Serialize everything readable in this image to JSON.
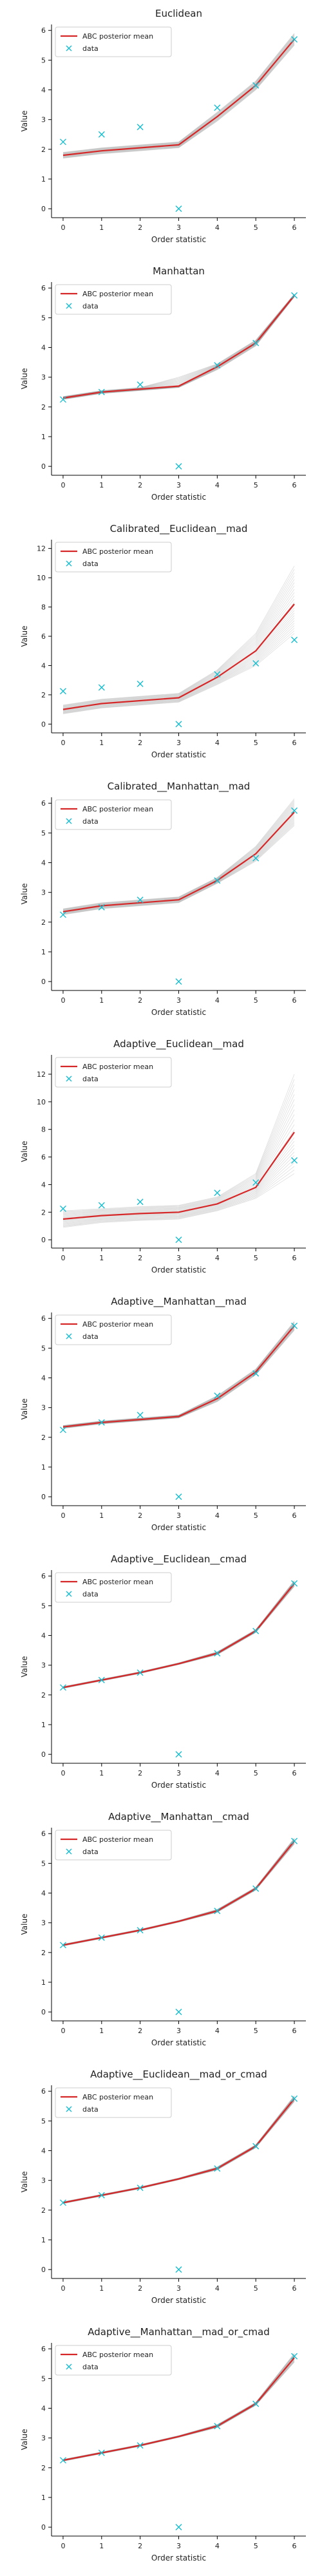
{
  "legend": {
    "mean_label": "ABC posterior mean",
    "data_label": "data"
  },
  "colors": {
    "mean": "#d62728",
    "data": "#17becf",
    "samples": "#888888",
    "axis": "#000000"
  },
  "chart_data": [
    {
      "type": "line",
      "title": "Euclidean",
      "xlabel": "Order statistic",
      "ylabel": "Value",
      "x": [
        0,
        1,
        2,
        3,
        4,
        5,
        6
      ],
      "xlim": [
        -0.3,
        6.3
      ],
      "ylim": [
        -0.3,
        6.2
      ],
      "yticks": [
        0,
        1,
        2,
        3,
        4,
        5,
        6
      ],
      "legend_position": "top-left",
      "mean": [
        1.8,
        1.95,
        2.05,
        2.15,
        3.1,
        4.15,
        5.7
      ],
      "data": [
        2.25,
        2.5,
        2.75,
        0.0,
        3.4,
        4.15,
        5.7
      ],
      "spread_low": [
        0.1,
        0.1,
        0.1,
        0.1,
        0.15,
        0.15,
        0.2
      ],
      "spread_high": [
        0.1,
        0.1,
        0.1,
        0.1,
        0.15,
        0.15,
        0.2
      ]
    },
    {
      "type": "line",
      "title": "Manhattan",
      "xlabel": "Order statistic",
      "ylabel": "Value",
      "x": [
        0,
        1,
        2,
        3,
        4,
        5,
        6
      ],
      "xlim": [
        -0.3,
        6.3
      ],
      "ylim": [
        -0.3,
        6.2
      ],
      "yticks": [
        0,
        1,
        2,
        3,
        4,
        5,
        6
      ],
      "legend_position": "top-left",
      "mean": [
        2.3,
        2.5,
        2.6,
        2.7,
        3.35,
        4.15,
        5.75
      ],
      "data": [
        2.25,
        2.5,
        2.75,
        0.0,
        3.4,
        4.15,
        5.75
      ],
      "spread_low": [
        0.05,
        0.05,
        0.05,
        0.05,
        0.1,
        0.1,
        0.05
      ],
      "spread_high": [
        0.05,
        0.05,
        0.05,
        0.3,
        0.1,
        0.1,
        0.05
      ]
    },
    {
      "type": "line",
      "title": "Calibrated__Euclidean__mad",
      "xlabel": "Order statistic",
      "ylabel": "Value",
      "x": [
        0,
        1,
        2,
        3,
        4,
        5,
        6
      ],
      "xlim": [
        -0.3,
        6.3
      ],
      "ylim": [
        -0.6,
        12.6
      ],
      "yticks": [
        0,
        2,
        4,
        6,
        8,
        10,
        12
      ],
      "legend_position": "top-left",
      "mean": [
        1.0,
        1.4,
        1.6,
        1.8,
        3.2,
        5.0,
        8.2
      ],
      "data": [
        2.25,
        2.5,
        2.75,
        0.0,
        3.4,
        4.15,
        5.75
      ],
      "spread_low": [
        0.3,
        0.3,
        0.3,
        0.3,
        0.5,
        1.0,
        2.0
      ],
      "spread_high": [
        0.3,
        0.3,
        0.3,
        0.3,
        0.5,
        1.2,
        2.6
      ]
    },
    {
      "type": "line",
      "title": "Calibrated__Manhattan__mad",
      "xlabel": "Order statistic",
      "ylabel": "Value",
      "x": [
        0,
        1,
        2,
        3,
        4,
        5,
        6
      ],
      "xlim": [
        -0.3,
        6.3
      ],
      "ylim": [
        -0.3,
        6.2
      ],
      "yticks": [
        0,
        1,
        2,
        3,
        4,
        5,
        6
      ],
      "legend_position": "top-left",
      "mean": [
        2.35,
        2.55,
        2.65,
        2.75,
        3.4,
        4.3,
        5.7
      ],
      "data": [
        2.25,
        2.5,
        2.75,
        0.0,
        3.4,
        4.15,
        5.75
      ],
      "spread_low": [
        0.1,
        0.1,
        0.1,
        0.1,
        0.1,
        0.25,
        0.45
      ],
      "spread_high": [
        0.1,
        0.1,
        0.1,
        0.1,
        0.1,
        0.25,
        0.45
      ]
    },
    {
      "type": "line",
      "title": "Adaptive__Euclidean__mad",
      "xlabel": "Order statistic",
      "ylabel": "Value",
      "x": [
        0,
        1,
        2,
        3,
        4,
        5,
        6
      ],
      "xlim": [
        -0.3,
        6.3
      ],
      "ylim": [
        -0.6,
        13.4
      ],
      "yticks": [
        0,
        2,
        4,
        6,
        8,
        10,
        12
      ],
      "legend_position": "top-left",
      "mean": [
        1.5,
        1.75,
        1.9,
        2.0,
        2.6,
        3.8,
        7.8
      ],
      "data": [
        2.25,
        2.5,
        2.75,
        0.0,
        3.4,
        4.15,
        5.75
      ],
      "spread_low": [
        0.6,
        0.5,
        0.5,
        0.5,
        0.5,
        0.8,
        3.0
      ],
      "spread_high": [
        0.6,
        0.5,
        0.5,
        0.5,
        0.5,
        1.0,
        4.2
      ]
    },
    {
      "type": "line",
      "title": "Adaptive__Manhattan__mad",
      "xlabel": "Order statistic",
      "ylabel": "Value",
      "x": [
        0,
        1,
        2,
        3,
        4,
        5,
        6
      ],
      "xlim": [
        -0.3,
        6.3
      ],
      "ylim": [
        -0.3,
        6.2
      ],
      "yticks": [
        0,
        1,
        2,
        3,
        4,
        5,
        6
      ],
      "legend_position": "top-left",
      "mean": [
        2.35,
        2.5,
        2.6,
        2.7,
        3.3,
        4.2,
        5.75
      ],
      "data": [
        2.25,
        2.5,
        2.75,
        0.0,
        3.4,
        4.15,
        5.75
      ],
      "spread_low": [
        0.05,
        0.05,
        0.05,
        0.05,
        0.1,
        0.1,
        0.15
      ],
      "spread_high": [
        0.05,
        0.05,
        0.05,
        0.05,
        0.1,
        0.1,
        0.15
      ]
    },
    {
      "type": "line",
      "title": "Adaptive__Euclidean__cmad",
      "xlabel": "Order statistic",
      "ylabel": "Value",
      "x": [
        0,
        1,
        2,
        3,
        4,
        5,
        6
      ],
      "xlim": [
        -0.3,
        6.3
      ],
      "ylim": [
        -0.3,
        6.2
      ],
      "yticks": [
        0,
        1,
        2,
        3,
        4,
        5,
        6
      ],
      "legend_position": "top-left",
      "mean": [
        2.25,
        2.5,
        2.75,
        3.05,
        3.4,
        4.15,
        5.75
      ],
      "data": [
        2.25,
        2.5,
        2.75,
        0.0,
        3.4,
        4.15,
        5.75
      ],
      "spread_low": [
        0.03,
        0.03,
        0.03,
        0.03,
        0.05,
        0.05,
        0.1
      ],
      "spread_high": [
        0.03,
        0.03,
        0.03,
        0.03,
        0.05,
        0.05,
        0.1
      ]
    },
    {
      "type": "line",
      "title": "Adaptive__Manhattan__cmad",
      "xlabel": "Order statistic",
      "ylabel": "Value",
      "x": [
        0,
        1,
        2,
        3,
        4,
        5,
        6
      ],
      "xlim": [
        -0.3,
        6.3
      ],
      "ylim": [
        -0.3,
        6.2
      ],
      "yticks": [
        0,
        1,
        2,
        3,
        4,
        5,
        6
      ],
      "legend_position": "top-left",
      "mean": [
        2.25,
        2.5,
        2.75,
        3.05,
        3.4,
        4.15,
        5.75
      ],
      "data": [
        2.25,
        2.5,
        2.75,
        0.0,
        3.4,
        4.15,
        5.75
      ],
      "spread_low": [
        0.03,
        0.03,
        0.03,
        0.03,
        0.05,
        0.05,
        0.1
      ],
      "spread_high": [
        0.03,
        0.03,
        0.03,
        0.03,
        0.05,
        0.05,
        0.1
      ]
    },
    {
      "type": "line",
      "title": "Adaptive__Euclidean__mad_or_cmad",
      "xlabel": "Order statistic",
      "ylabel": "Value",
      "x": [
        0,
        1,
        2,
        3,
        4,
        5,
        6
      ],
      "xlim": [
        -0.3,
        6.3
      ],
      "ylim": [
        -0.3,
        6.2
      ],
      "yticks": [
        0,
        1,
        2,
        3,
        4,
        5,
        6
      ],
      "legend_position": "top-left",
      "mean": [
        2.25,
        2.5,
        2.75,
        3.05,
        3.4,
        4.15,
        5.75
      ],
      "data": [
        2.25,
        2.5,
        2.75,
        0.0,
        3.4,
        4.15,
        5.75
      ],
      "spread_low": [
        0.03,
        0.03,
        0.03,
        0.03,
        0.05,
        0.05,
        0.1
      ],
      "spread_high": [
        0.03,
        0.03,
        0.03,
        0.03,
        0.05,
        0.05,
        0.1
      ]
    },
    {
      "type": "line",
      "title": "Adaptive__Manhattan__mad_or_cmad",
      "xlabel": "Order statistic",
      "ylabel": "Value",
      "x": [
        0,
        1,
        2,
        3,
        4,
        5,
        6
      ],
      "xlim": [
        -0.3,
        6.3
      ],
      "ylim": [
        -0.3,
        6.2
      ],
      "yticks": [
        0,
        1,
        2,
        3,
        4,
        5,
        6
      ],
      "legend_position": "top-left",
      "mean": [
        2.25,
        2.5,
        2.75,
        3.05,
        3.4,
        4.15,
        5.7
      ],
      "data": [
        2.25,
        2.5,
        2.75,
        0.0,
        3.4,
        4.15,
        5.75
      ],
      "spread_low": [
        0.03,
        0.03,
        0.03,
        0.03,
        0.05,
        0.05,
        0.15
      ],
      "spread_high": [
        0.03,
        0.03,
        0.03,
        0.03,
        0.05,
        0.05,
        0.15
      ]
    }
  ]
}
